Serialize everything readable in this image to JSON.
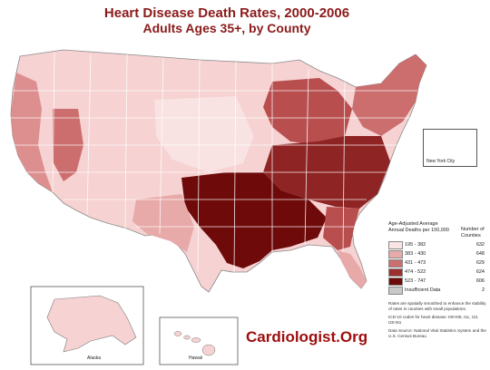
{
  "title": {
    "line1": "Heart Disease Death Rates, 2000-2006",
    "line2": "Adults Ages 35+, by County"
  },
  "legend": {
    "header_left": "Age-Adjusted Average Annual Deaths per 100,000",
    "header_right": "Number of Counties",
    "items": [
      {
        "label": "195 - 382",
        "count": "632",
        "color": "#fbe4e4"
      },
      {
        "label": "383 - 430",
        "count": "648",
        "color": "#e8a9a9"
      },
      {
        "label": "431 - 473",
        "count": "629",
        "color": "#cc6e6e"
      },
      {
        "label": "474 - 522",
        "count": "624",
        "color": "#9e2f2f"
      },
      {
        "label": "523 - 747",
        "count": "606",
        "color": "#6e0a0a"
      },
      {
        "label": "Insufficient Data",
        "count": "2",
        "color": "#c8c8c8"
      }
    ]
  },
  "notes": {
    "smoothing": "Rates are spatially smoothed to enhance the stability of rates in counties with small populations.",
    "icd": "ICD-10 codes for heart disease: I00-I09, I11, I13, I20-I51",
    "source": "Data Source: National Vital Statistics System and the U.S. Census Bureau"
  },
  "insets": {
    "alaska": "Alaska",
    "hawaii": "Hawaii",
    "nyc": "New York City"
  },
  "brand": "Cardiologist.Org",
  "colors": {
    "border": "#ffffff",
    "outline": "#7a7a7a"
  }
}
